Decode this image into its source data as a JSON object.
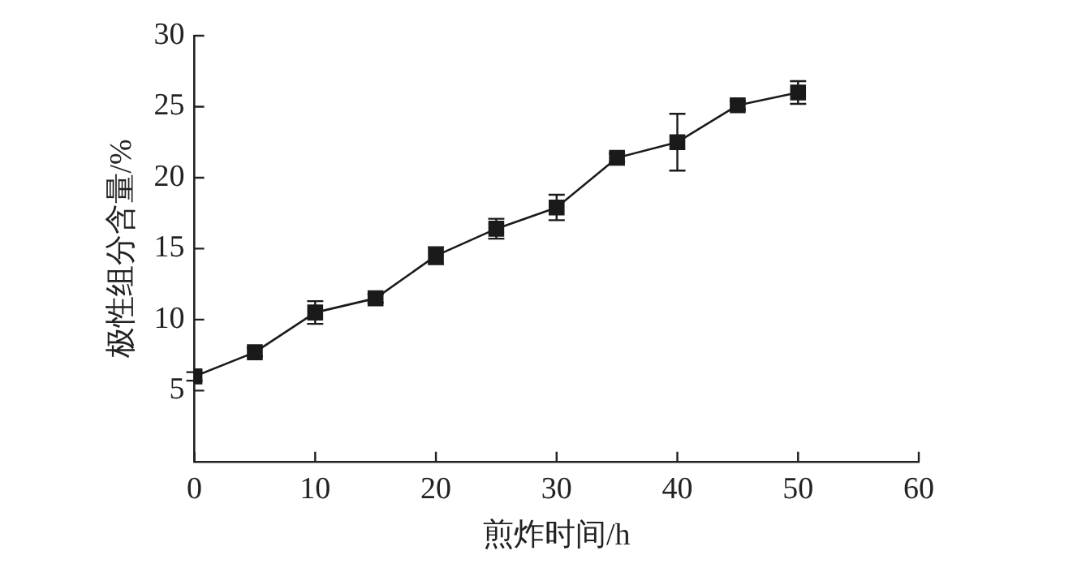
{
  "chart_data": {
    "type": "line",
    "xlabel": "煎炸时间/h",
    "ylabel": "极性组分含量/%",
    "x": [
      0,
      5,
      10,
      15,
      20,
      25,
      30,
      35,
      40,
      45,
      50
    ],
    "series": [
      {
        "color": "#1a1a1a",
        "values": [
          6.0,
          7.7,
          10.5,
          11.5,
          14.5,
          16.4,
          17.9,
          21.4,
          22.5,
          25.1,
          26.0
        ],
        "errors": [
          0.3,
          0.3,
          0.8,
          0.3,
          0.6,
          0.7,
          0.9,
          0.3,
          2.0,
          0.3,
          0.8
        ]
      }
    ],
    "xlim": [
      0,
      60
    ],
    "xticks": [
      0,
      10,
      20,
      30,
      40,
      50,
      60
    ],
    "ylim": [
      0,
      30
    ],
    "yticks": [
      5,
      10,
      15,
      20,
      25,
      30
    ],
    "grid": false,
    "legend": false,
    "marker": "square",
    "line_style": "solid"
  }
}
